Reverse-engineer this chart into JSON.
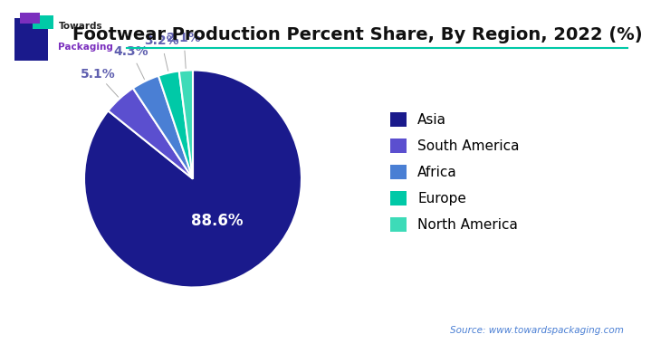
{
  "title": "Footwear Production Percent Share, By Region, 2022 (%)",
  "labels": [
    "Asia",
    "South America",
    "Africa",
    "Europe",
    "North America"
  ],
  "values": [
    88.6,
    5.1,
    4.3,
    3.2,
    2.1
  ],
  "colors": [
    "#1a1a8c",
    "#5b4fcf",
    "#4a7fd4",
    "#00c9a7",
    "#3ddbb8"
  ],
  "pct_labels": [
    "88.6%",
    "5.1%",
    "4.3%",
    "3.2%",
    "2.1%"
  ],
  "source_text": "Source: www.towardspackaging.com",
  "bg_color": "#ffffff",
  "title_fontsize": 14,
  "legend_fontsize": 11,
  "pct_fontsize": 10,
  "teal_line_color": "#00c9a7",
  "logo_blue": "#1a1a8c",
  "logo_teal": "#00c9a7",
  "logo_purple": "#7b2fbe",
  "text_color_label": "#6060b0",
  "source_color": "#4a7fd4"
}
